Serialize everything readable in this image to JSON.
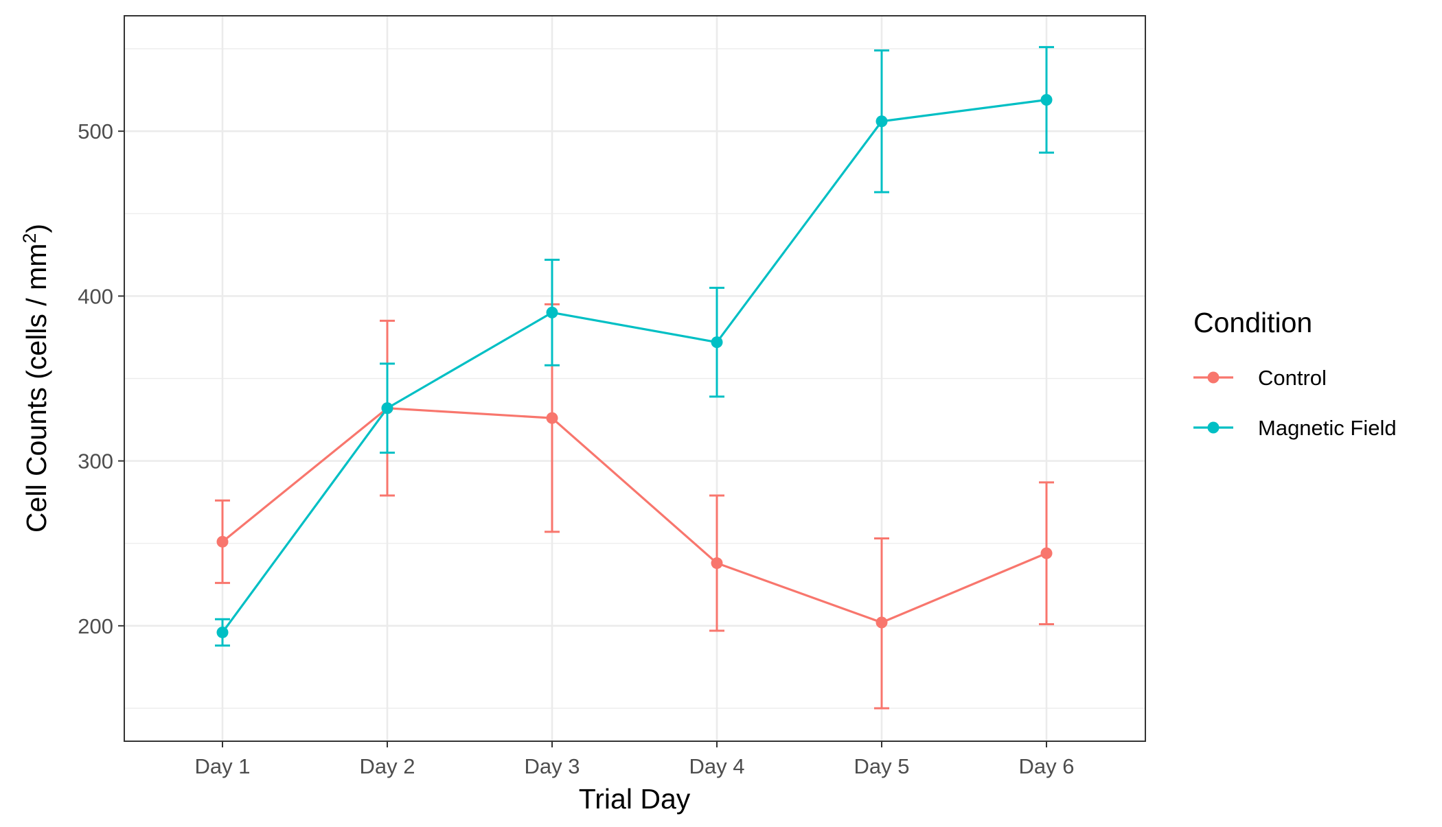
{
  "chart_data": {
    "type": "line",
    "categories": [
      "Day 1",
      "Day 2",
      "Day 3",
      "Day 4",
      "Day 5",
      "Day 6"
    ],
    "xlabel": "Trial Day",
    "ylabel": "Cell Counts (cells / mm",
    "ylabel_superscript": "2",
    "ylabel_suffix": ")",
    "ylim": [
      130,
      570
    ],
    "yticks": [
      200,
      300,
      400,
      500
    ],
    "yticks_minor": [
      150,
      250,
      350,
      450,
      550
    ],
    "grid": true,
    "legend": {
      "title": "Condition",
      "position": "right"
    },
    "series": [
      {
        "name": "Control",
        "color": "#F8766D",
        "values": [
          251,
          332,
          326,
          238,
          202,
          244
        ],
        "error_low": [
          226,
          279,
          257,
          197,
          150,
          201
        ],
        "error_high": [
          276,
          385,
          395,
          279,
          253,
          287
        ]
      },
      {
        "name": "Magnetic Field",
        "color": "#00BFC4",
        "values": [
          196,
          332,
          390,
          372,
          506,
          519
        ],
        "error_low": [
          188,
          305,
          358,
          339,
          463,
          487
        ],
        "error_high": [
          204,
          359,
          422,
          405,
          549,
          551
        ]
      }
    ]
  }
}
